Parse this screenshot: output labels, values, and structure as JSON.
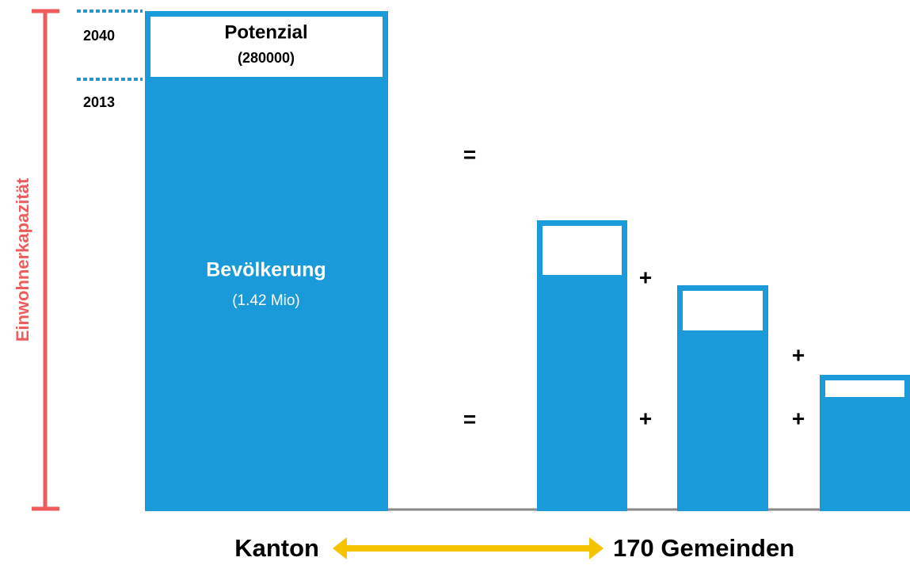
{
  "axis_label": "Einwohnerkapazität",
  "years": [
    "2040",
    "2013"
  ],
  "kanton_bar": {
    "top_label": "Potenzial",
    "top_value": "(280000)",
    "main_label": "Bevölkerung",
    "main_value": "(1.42 Mio)"
  },
  "operators": [
    "=",
    "=",
    "+",
    "+",
    "+",
    "+"
  ],
  "footer": {
    "left": "Kanton",
    "right": "170 Gemeinden"
  }
}
